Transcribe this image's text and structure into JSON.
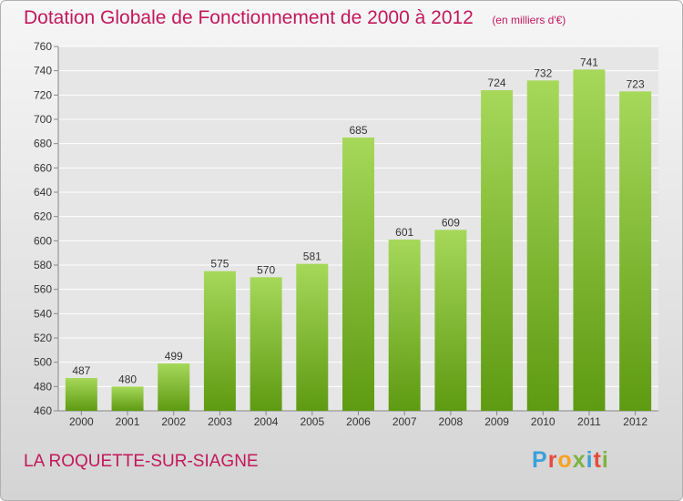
{
  "title": "Dotation Globale de Fonctionnement de 2000 à 2012",
  "subtitle": "(en milliers d'€)",
  "municipality": "LA ROQUETTE-SUR-SIAGNE",
  "brand": {
    "letters": [
      "P",
      "r",
      "o",
      "x",
      "i",
      "t",
      "i"
    ],
    "colors": [
      "#3aa0d8",
      "#e64a3c",
      "#f7a21b",
      "#7cb342",
      "#3aa0d8",
      "#e64a3c",
      "#7cb342"
    ]
  },
  "colors": {
    "bar_top": "#a6d85a",
    "bar_bottom": "#5e9a12",
    "title": "#c2185b",
    "grid": "#ffffff"
  },
  "chart_data": {
    "type": "bar",
    "categories": [
      "2000",
      "2001",
      "2002",
      "2003",
      "2004",
      "2005",
      "2006",
      "2007",
      "2008",
      "2009",
      "2010",
      "2011",
      "2012"
    ],
    "values": [
      487,
      480,
      499,
      575,
      570,
      581,
      685,
      601,
      609,
      724,
      732,
      741,
      723
    ],
    "ylim": [
      460,
      760
    ],
    "yticks": [
      460,
      480,
      500,
      520,
      540,
      560,
      580,
      600,
      620,
      640,
      660,
      680,
      700,
      720,
      740,
      760
    ],
    "grid": true,
    "xlabel": "",
    "ylabel": ""
  }
}
